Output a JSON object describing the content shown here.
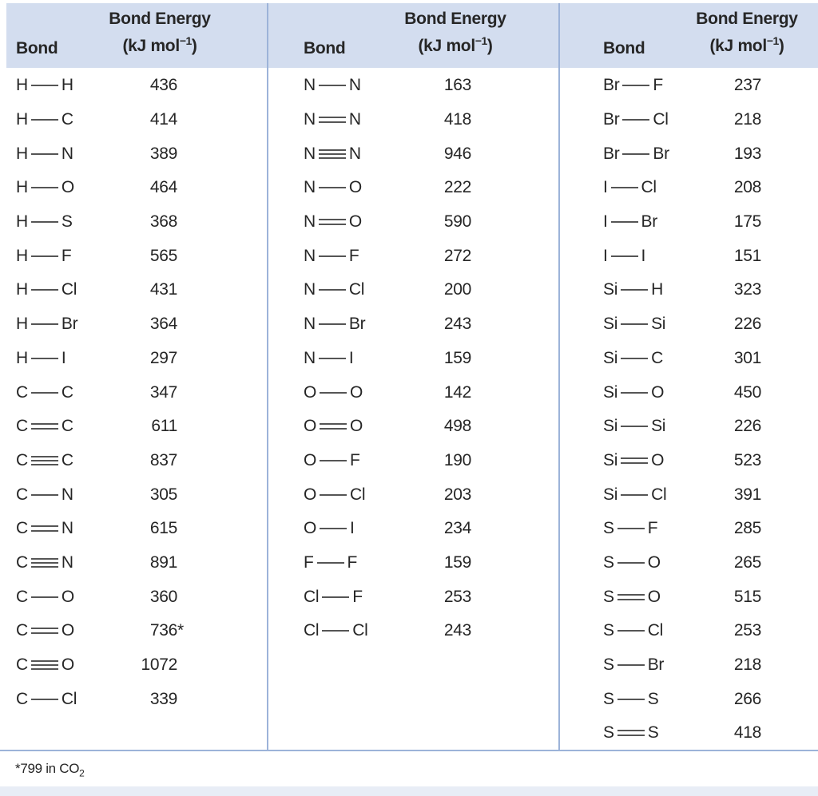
{
  "colors": {
    "header_bg": "#d3ddef",
    "divider": "#9cb3d9",
    "rule": "#9cb3d9",
    "footer_strip": "#e8edf6",
    "text": "#262626",
    "bond_line": "#555555"
  },
  "header": {
    "bond_label": "Bond",
    "energy_label": "Bond Energy",
    "unit_prefix": "(kJ mol",
    "unit_sup": "−1",
    "unit_suffix": ")"
  },
  "footnote": {
    "text": "*799 in CO",
    "sub": "2"
  },
  "tables": [
    {
      "rows": [
        {
          "left": "H",
          "order": 1,
          "right": "H",
          "energy": "436"
        },
        {
          "left": "H",
          "order": 1,
          "right": "C",
          "energy": "414"
        },
        {
          "left": "H",
          "order": 1,
          "right": "N",
          "energy": "389"
        },
        {
          "left": "H",
          "order": 1,
          "right": "O",
          "energy": "464"
        },
        {
          "left": "H",
          "order": 1,
          "right": "S",
          "energy": "368"
        },
        {
          "left": "H",
          "order": 1,
          "right": "F",
          "energy": "565"
        },
        {
          "left": "H",
          "order": 1,
          "right": "Cl",
          "energy": "431"
        },
        {
          "left": "H",
          "order": 1,
          "right": "Br",
          "energy": "364"
        },
        {
          "left": "H",
          "order": 1,
          "right": "I",
          "energy": "297"
        },
        {
          "left": "C",
          "order": 1,
          "right": "C",
          "energy": "347"
        },
        {
          "left": "C",
          "order": 2,
          "right": "C",
          "energy": "611"
        },
        {
          "left": "C",
          "order": 3,
          "right": "C",
          "energy": "837"
        },
        {
          "left": "C",
          "order": 1,
          "right": "N",
          "energy": "305"
        },
        {
          "left": "C",
          "order": 2,
          "right": "N",
          "energy": "615"
        },
        {
          "left": "C",
          "order": 3,
          "right": "N",
          "energy": "891"
        },
        {
          "left": "C",
          "order": 1,
          "right": "O",
          "energy": "360"
        },
        {
          "left": "C",
          "order": 2,
          "right": "O",
          "energy": "736",
          "note": "*"
        },
        {
          "left": "C",
          "order": 3,
          "right": "O",
          "energy": "1072"
        },
        {
          "left": "C",
          "order": 1,
          "right": "Cl",
          "energy": "339"
        }
      ]
    },
    {
      "rows": [
        {
          "left": "N",
          "order": 1,
          "right": "N",
          "energy": "163"
        },
        {
          "left": "N",
          "order": 2,
          "right": "N",
          "energy": "418"
        },
        {
          "left": "N",
          "order": 3,
          "right": "N",
          "energy": "946"
        },
        {
          "left": "N",
          "order": 1,
          "right": "O",
          "energy": "222"
        },
        {
          "left": "N",
          "order": 2,
          "right": "O",
          "energy": "590"
        },
        {
          "left": "N",
          "order": 1,
          "right": "F",
          "energy": "272"
        },
        {
          "left": "N",
          "order": 1,
          "right": "Cl",
          "energy": "200"
        },
        {
          "left": "N",
          "order": 1,
          "right": "Br",
          "energy": "243"
        },
        {
          "left": "N",
          "order": 1,
          "right": "I",
          "energy": "159"
        },
        {
          "left": "O",
          "order": 1,
          "right": "O",
          "energy": "142"
        },
        {
          "left": "O",
          "order": 2,
          "right": "O",
          "energy": "498"
        },
        {
          "left": "O",
          "order": 1,
          "right": "F",
          "energy": "190"
        },
        {
          "left": "O",
          "order": 1,
          "right": "Cl",
          "energy": "203"
        },
        {
          "left": "O",
          "order": 1,
          "right": "I",
          "energy": "234"
        },
        {
          "left": "F",
          "order": 1,
          "right": "F",
          "energy": "159"
        },
        {
          "left": "Cl",
          "order": 1,
          "right": "F",
          "energy": "253"
        },
        {
          "left": "Cl",
          "order": 1,
          "right": "Cl",
          "energy": "243"
        }
      ]
    },
    {
      "rows": [
        {
          "left": "Br",
          "order": 1,
          "right": "F",
          "energy": "237"
        },
        {
          "left": "Br",
          "order": 1,
          "right": "Cl",
          "energy": "218"
        },
        {
          "left": "Br",
          "order": 1,
          "right": "Br",
          "energy": "193"
        },
        {
          "left": "I",
          "order": 1,
          "right": "Cl",
          "energy": "208"
        },
        {
          "left": "I",
          "order": 1,
          "right": "Br",
          "energy": "175"
        },
        {
          "left": "I",
          "order": 1,
          "right": "I",
          "energy": "151"
        },
        {
          "left": "Si",
          "order": 1,
          "right": "H",
          "energy": "323"
        },
        {
          "left": "Si",
          "order": 1,
          "right": "Si",
          "energy": "226"
        },
        {
          "left": "Si",
          "order": 1,
          "right": "C",
          "energy": "301"
        },
        {
          "left": "Si",
          "order": 1,
          "right": "O",
          "energy": "450"
        },
        {
          "left": "Si",
          "order": 1,
          "right": "Si",
          "energy": "226"
        },
        {
          "left": "Si",
          "order": 2,
          "right": "O",
          "energy": "523"
        },
        {
          "left": "Si",
          "order": 1,
          "right": "Cl",
          "energy": "391"
        },
        {
          "left": "S",
          "order": 1,
          "right": "F",
          "energy": "285"
        },
        {
          "left": "S",
          "order": 1,
          "right": "O",
          "energy": "265"
        },
        {
          "left": "S",
          "order": 2,
          "right": "O",
          "energy": "515"
        },
        {
          "left": "S",
          "order": 1,
          "right": "Cl",
          "energy": "253"
        },
        {
          "left": "S",
          "order": 1,
          "right": "Br",
          "energy": "218"
        },
        {
          "left": "S",
          "order": 1,
          "right": "S",
          "energy": "266"
        },
        {
          "left": "S",
          "order": 2,
          "right": "S",
          "energy": "418"
        }
      ]
    }
  ]
}
